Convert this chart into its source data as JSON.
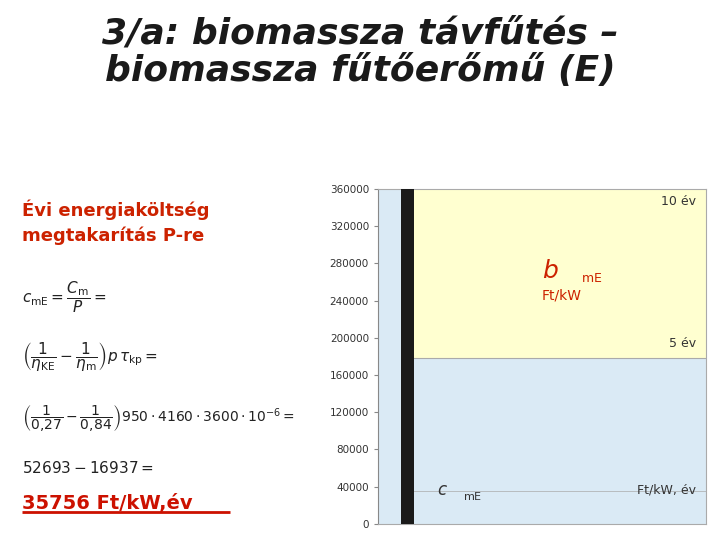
{
  "title_line1": "3/a: biomassza távfűtés –",
  "title_line2": "biomassza fűtőerőmű (E)",
  "title_color": "#1a1a1a",
  "title_fontsize": 26,
  "left_bg_color": "#ffffd0",
  "right_top_color": "#ffffd0",
  "right_bottom_color": "#daeaf5",
  "text_red": "#cc2200",
  "text_dark": "#222222",
  "y_min": 0,
  "y_max": 360000,
  "y_ticks": [
    0,
    40000,
    80000,
    120000,
    160000,
    200000,
    240000,
    280000,
    320000,
    360000
  ],
  "boundary_value": 178570,
  "annotation_10ev": "10 év",
  "annotation_5ev": "5 év",
  "annotation_ftkw": "Ft/kW",
  "annotation_ftkwev": "Ft/kW, év",
  "formula_color": "#222222",
  "result_color": "#cc1100",
  "result_text": "35756 Ft/kW,év"
}
